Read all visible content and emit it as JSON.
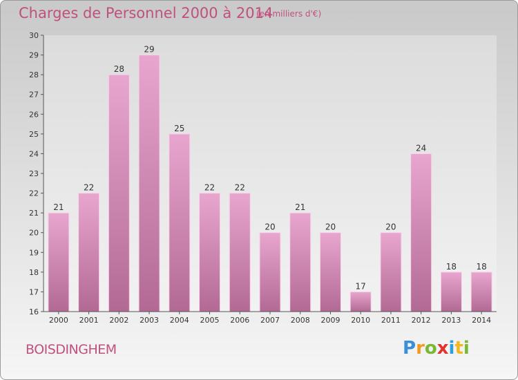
{
  "header": {
    "title": "Charges de Personnel 2000 à 2014",
    "subtitle": "(en milliers d'€)"
  },
  "footer": {
    "commune": "BOISDINGHEM",
    "logo_text": "Proxiti",
    "logo_letters": [
      "P",
      "r",
      "o",
      "x",
      "i",
      "t",
      "i"
    ],
    "logo_colors": [
      "#3a8fd6",
      "#f29a1d",
      "#7ab833",
      "#e2322f",
      "#2e9fd8",
      "#f2b81d",
      "#7ab833"
    ]
  },
  "colors": {
    "bar_light": "#e8a6cf",
    "bar_dark": "#b26a94",
    "bar_edge": "#f7d3e9",
    "text": "#333333",
    "accent": "#c0507e",
    "plot_bg_top": "#dcdcdc",
    "plot_bg_bottom": "#f2f2f2"
  },
  "chart_data": {
    "type": "bar",
    "title": "Charges de Personnel 2000 à 2014",
    "subtitle": "(en milliers d'€)",
    "categories": [
      "2000",
      "2001",
      "2002",
      "2003",
      "2004",
      "2005",
      "2006",
      "2007",
      "2008",
      "2009",
      "2010",
      "2011",
      "2012",
      "2013",
      "2014"
    ],
    "values": [
      21,
      22,
      28,
      29,
      25,
      22,
      22,
      20,
      21,
      20,
      17,
      20,
      24,
      18,
      18
    ],
    "ylim": [
      16,
      30
    ],
    "yticks": [
      "16",
      "17",
      "18",
      "19",
      "20",
      "21",
      "22",
      "23",
      "24",
      "25",
      "26",
      "27",
      "28",
      "29",
      "30"
    ],
    "grid": false,
    "data_labels": true
  }
}
